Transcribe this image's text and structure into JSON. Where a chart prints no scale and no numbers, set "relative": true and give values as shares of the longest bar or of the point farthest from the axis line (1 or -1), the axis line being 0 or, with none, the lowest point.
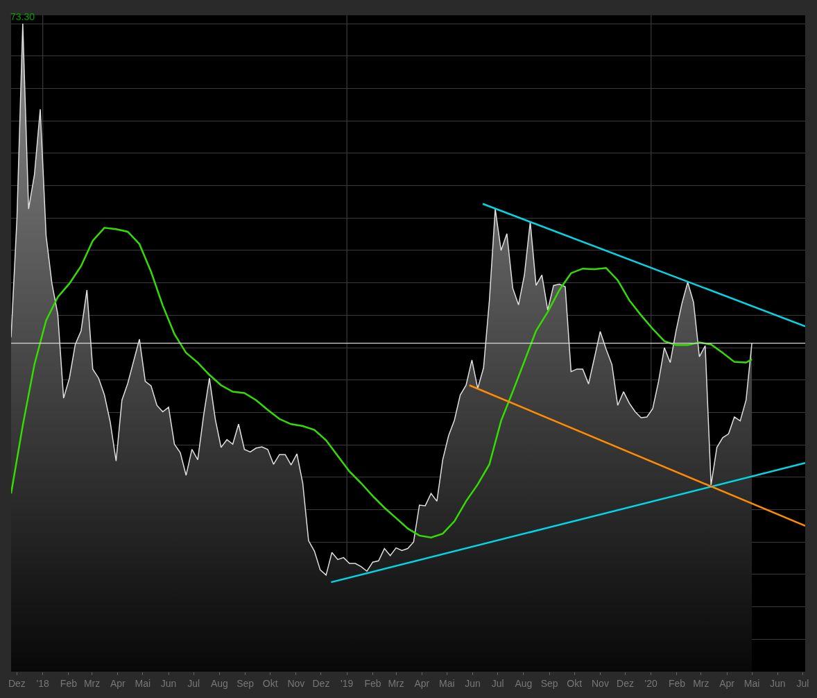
{
  "chart_data": {
    "type": "area",
    "relative": true,
    "grid": "y",
    "x": [
      "2017-11-24",
      "2017-12-01",
      "2017-12-08",
      "2017-12-15",
      "2017-12-22",
      "2017-12-29",
      "2018-01-05",
      "2018-01-12",
      "2018-01-19",
      "2018-01-26",
      "2018-02-02",
      "2018-02-09",
      "2018-02-16",
      "2018-02-23",
      "2018-03-02",
      "2018-03-09",
      "2018-03-16",
      "2018-03-23",
      "2018-03-30",
      "2018-04-06",
      "2018-04-13",
      "2018-04-20",
      "2018-04-27",
      "2018-05-04",
      "2018-05-11",
      "2018-05-18",
      "2018-05-25",
      "2018-06-01",
      "2018-06-08",
      "2018-06-15",
      "2018-06-22",
      "2018-06-29",
      "2018-07-06",
      "2018-07-13",
      "2018-07-20",
      "2018-07-27",
      "2018-08-03",
      "2018-08-10",
      "2018-08-17",
      "2018-08-24",
      "2018-08-31",
      "2018-09-07",
      "2018-09-14",
      "2018-09-21",
      "2018-09-28",
      "2018-10-05",
      "2018-10-12",
      "2018-10-19",
      "2018-10-26",
      "2018-11-02",
      "2018-11-09",
      "2018-11-16",
      "2018-11-23",
      "2018-11-30",
      "2018-12-07",
      "2018-12-14",
      "2018-12-21",
      "2018-12-28",
      "2019-01-04",
      "2019-01-11",
      "2019-01-18",
      "2019-01-25",
      "2019-02-01",
      "2019-02-08",
      "2019-02-15",
      "2019-02-22",
      "2019-03-01",
      "2019-03-08",
      "2019-03-15",
      "2019-03-22",
      "2019-03-29",
      "2019-04-05",
      "2019-04-12",
      "2019-04-19",
      "2019-04-26",
      "2019-05-03",
      "2019-05-10",
      "2019-05-17",
      "2019-05-24",
      "2019-05-31",
      "2019-06-07",
      "2019-06-14",
      "2019-06-21",
      "2019-06-28",
      "2019-07-05",
      "2019-07-12",
      "2019-07-19",
      "2019-07-26",
      "2019-08-02",
      "2019-08-09",
      "2019-08-16",
      "2019-08-23",
      "2019-08-30",
      "2019-09-06",
      "2019-09-13",
      "2019-09-20",
      "2019-09-27",
      "2019-10-04",
      "2019-10-11",
      "2019-10-18",
      "2019-10-25",
      "2019-11-01",
      "2019-11-08",
      "2019-11-15",
      "2019-11-22",
      "2019-11-29",
      "2019-12-06",
      "2019-12-13",
      "2019-12-20",
      "2019-12-27",
      "2020-01-03",
      "2020-01-10",
      "2020-01-17",
      "2020-01-24",
      "2020-01-31",
      "2020-02-07",
      "2020-02-14",
      "2020-02-21",
      "2020-02-28",
      "2020-03-06",
      "2020-03-13",
      "2020-03-20",
      "2020-03-27",
      "2020-04-03",
      "2020-04-10",
      "2020-04-17",
      "2020-04-24",
      "2020-05-01"
    ],
    "series": [
      {
        "color": "#e0e0e0",
        "values": [
          0.516,
          0.699,
          1.0,
          0.714,
          0.767,
          0.868,
          0.673,
          0.599,
          0.552,
          0.422,
          0.453,
          0.505,
          0.526,
          0.589,
          0.467,
          0.453,
          0.427,
          0.385,
          0.325,
          0.419,
          0.445,
          0.479,
          0.513,
          0.448,
          0.441,
          0.411,
          0.401,
          0.408,
          0.351,
          0.338,
          0.303,
          0.343,
          0.327,
          0.395,
          0.453,
          0.39,
          0.346,
          0.358,
          0.351,
          0.382,
          0.343,
          0.339,
          0.345,
          0.347,
          0.343,
          0.32,
          0.335,
          0.335,
          0.319,
          0.336,
          0.291,
          0.202,
          0.186,
          0.157,
          0.149,
          0.184,
          0.173,
          0.176,
          0.167,
          0.167,
          0.162,
          0.155,
          0.169,
          0.171,
          0.19,
          0.179,
          0.191,
          0.187,
          0.19,
          0.2,
          0.257,
          0.256,
          0.275,
          0.263,
          0.327,
          0.364,
          0.388,
          0.427,
          0.442,
          0.481,
          0.437,
          0.469,
          0.573,
          0.714,
          0.65,
          0.676,
          0.592,
          0.566,
          0.612,
          0.694,
          0.596,
          0.612,
          0.558,
          0.596,
          0.598,
          0.594,
          0.463,
          0.467,
          0.467,
          0.444,
          0.484,
          0.525,
          0.498,
          0.474,
          0.411,
          0.432,
          0.414,
          0.401,
          0.392,
          0.393,
          0.406,
          0.448,
          0.5,
          0.477,
          0.526,
          0.568,
          0.601,
          0.57,
          0.486,
          0.503,
          0.288,
          0.346,
          0.361,
          0.367,
          0.393,
          0.387,
          0.419,
          0.507
        ]
      },
      {
        "type": "line",
        "color": "#33dd00",
        "x": [
          "2017-11-24",
          "2017-12-08",
          "2017-12-22",
          "2018-01-05",
          "2018-01-19",
          "2018-02-02",
          "2018-02-16",
          "2018-03-02",
          "2018-03-16",
          "2018-03-30",
          "2018-04-13",
          "2018-04-27",
          "2018-05-11",
          "2018-05-25",
          "2018-06-08",
          "2018-06-22",
          "2018-07-06",
          "2018-07-20",
          "2018-08-03",
          "2018-08-17",
          "2018-08-31",
          "2018-09-14",
          "2018-09-28",
          "2018-10-12",
          "2018-10-26",
          "2018-11-09",
          "2018-11-23",
          "2018-12-07",
          "2018-12-21",
          "2019-01-04",
          "2019-01-18",
          "2019-02-01",
          "2019-02-15",
          "2019-03-01",
          "2019-03-15",
          "2019-03-29",
          "2019-04-12",
          "2019-04-26",
          "2019-05-10",
          "2019-05-24",
          "2019-06-07",
          "2019-06-21",
          "2019-07-05",
          "2019-07-19",
          "2019-08-02",
          "2019-08-16",
          "2019-08-30",
          "2019-09-13",
          "2019-09-27",
          "2019-10-11",
          "2019-10-25",
          "2019-11-08",
          "2019-11-22",
          "2019-12-06",
          "2019-12-20",
          "2020-01-03",
          "2020-01-17",
          "2020-01-31",
          "2020-02-14",
          "2020-02-28",
          "2020-03-13",
          "2020-03-27",
          "2020-04-10",
          "2020-04-24",
          "2020-05-01"
        ],
        "values": [
          0.275,
          0.38,
          0.474,
          0.542,
          0.578,
          0.599,
          0.626,
          0.665,
          0.685,
          0.683,
          0.679,
          0.66,
          0.617,
          0.565,
          0.521,
          0.492,
          0.477,
          0.458,
          0.442,
          0.432,
          0.43,
          0.419,
          0.404,
          0.39,
          0.382,
          0.379,
          0.373,
          0.357,
          0.333,
          0.309,
          0.291,
          0.271,
          0.253,
          0.237,
          0.221,
          0.21,
          0.207,
          0.213,
          0.232,
          0.263,
          0.289,
          0.32,
          0.387,
          0.432,
          0.479,
          0.526,
          0.555,
          0.589,
          0.615,
          0.622,
          0.621,
          0.623,
          0.604,
          0.573,
          0.55,
          0.529,
          0.51,
          0.504,
          0.504,
          0.508,
          0.505,
          0.492,
          0.478,
          0.477,
          0.482
        ]
      },
      {
        "type": "line",
        "color": "#00d8e8",
        "x": [
          "2019-06-13",
          "2020-07-04"
        ],
        "values": [
          0.722,
          0.533
        ]
      },
      {
        "type": "line",
        "color": "#00d8e8",
        "x": [
          "2018-12-13",
          "2020-07-04"
        ],
        "values": [
          0.138,
          0.322
        ]
      },
      {
        "type": "line",
        "color": "#ff8c00",
        "x": [
          "2019-05-28",
          "2020-07-04"
        ],
        "values": [
          0.442,
          0.225
        ]
      }
    ],
    "xlim": [
      "2017-11-24",
      "2020-07-04"
    ],
    "xticks": [
      {
        "value": "2017-12-01",
        "label": "Dez"
      },
      {
        "value": "2018-01-01",
        "label": "'18"
      },
      {
        "value": "2018-02-01",
        "label": "Feb"
      },
      {
        "value": "2018-03-01",
        "label": "Mrz"
      },
      {
        "value": "2018-04-01",
        "label": "Apr"
      },
      {
        "value": "2018-05-01",
        "label": "Mai"
      },
      {
        "value": "2018-06-01",
        "label": "Jun"
      },
      {
        "value": "2018-07-01",
        "label": "Jul"
      },
      {
        "value": "2018-08-01",
        "label": "Aug"
      },
      {
        "value": "2018-09-01",
        "label": "Sep"
      },
      {
        "value": "2018-10-01",
        "label": "Okt"
      },
      {
        "value": "2018-11-01",
        "label": "Nov"
      },
      {
        "value": "2018-12-01",
        "label": "Dez"
      },
      {
        "value": "2019-01-01",
        "label": "'19"
      },
      {
        "value": "2019-02-01",
        "label": "Feb"
      },
      {
        "value": "2019-03-01",
        "label": "Mrz"
      },
      {
        "value": "2019-04-01",
        "label": "Apr"
      },
      {
        "value": "2019-05-01",
        "label": "Mai"
      },
      {
        "value": "2019-06-01",
        "label": "Jun"
      },
      {
        "value": "2019-07-01",
        "label": "Jul"
      },
      {
        "value": "2019-08-01",
        "label": "Aug"
      },
      {
        "value": "2019-09-01",
        "label": "Sep"
      },
      {
        "value": "2019-10-01",
        "label": "Okt"
      },
      {
        "value": "2019-11-01",
        "label": "Nov"
      },
      {
        "value": "2019-12-01",
        "label": "Dez"
      },
      {
        "value": "2020-01-01",
        "label": "'20"
      },
      {
        "value": "2020-02-01",
        "label": "Feb"
      },
      {
        "value": "2020-03-01",
        "label": "Mrz"
      },
      {
        "value": "2020-04-01",
        "label": "Apr"
      },
      {
        "value": "2020-05-01",
        "label": "Mai"
      },
      {
        "value": "2020-06-01",
        "label": "Jun"
      },
      {
        "value": "2020-07-01",
        "label": "Jul"
      }
    ],
    "ref_lines": [
      {
        "axis": "y",
        "value": 0.507,
        "color": "#d8d8d8"
      },
      {
        "axis": "x",
        "value": "2018-01-01",
        "color": "#3a3a3a"
      },
      {
        "axis": "x",
        "value": "2019-01-01",
        "color": "#3a3a3a"
      },
      {
        "axis": "x",
        "value": "2020-01-01",
        "color": "#3a3a3a"
      }
    ],
    "annotations": [
      {
        "text": "73.30",
        "x": "2017-12-08",
        "y": 1.0
      }
    ]
  }
}
